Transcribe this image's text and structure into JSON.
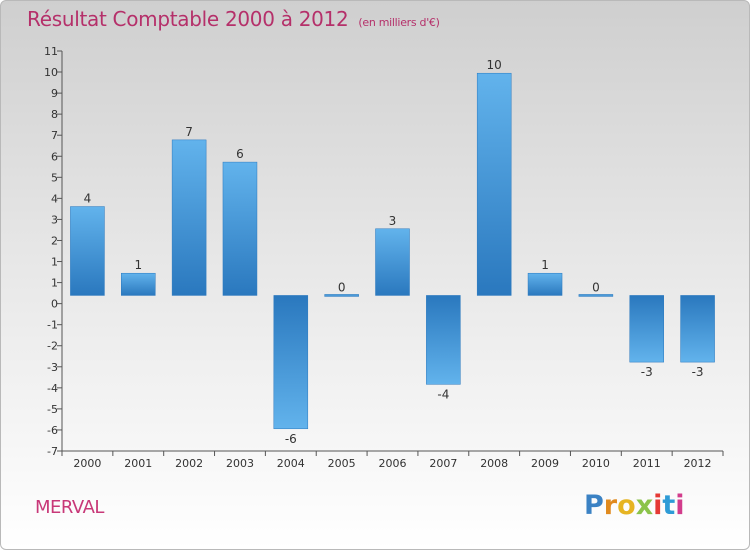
{
  "title": "Résultat Comptable 2000 à 2012",
  "subtitle": "(en milliers d'€)",
  "commune": "MERVAL",
  "logo": {
    "letters": [
      "P",
      "r",
      "o",
      "x",
      "i",
      "t",
      "i"
    ],
    "colors": [
      "#3b82c4",
      "#e08a1e",
      "#e6b422",
      "#8bc34a",
      "#e53935",
      "#2e9bd6",
      "#d23c8c"
    ]
  },
  "chart_data": {
    "type": "bar",
    "title": "Résultat Comptable 2000 à 2012",
    "ylabel": "",
    "xlabel": "",
    "categories": [
      "2000",
      "2001",
      "2002",
      "2003",
      "2004",
      "2005",
      "2006",
      "2007",
      "2008",
      "2009",
      "2010",
      "2011",
      "2012"
    ],
    "values": [
      4,
      1,
      7,
      6,
      -6,
      0,
      3,
      -4,
      10,
      1,
      0,
      -3,
      -3
    ],
    "ylim": [
      -7,
      11
    ],
    "yticks": [
      "-7",
      "-6",
      "-5",
      "-4",
      "-3",
      "-2",
      "-1",
      "0",
      "1",
      "1",
      "2",
      "3",
      "4",
      "5",
      "6",
      "7",
      "8",
      "9",
      "10",
      "11"
    ],
    "colors": {
      "bar_light": "#5fb0ea",
      "bar_dark": "#2a78be",
      "axis": "#555555",
      "label": "#333333"
    }
  }
}
